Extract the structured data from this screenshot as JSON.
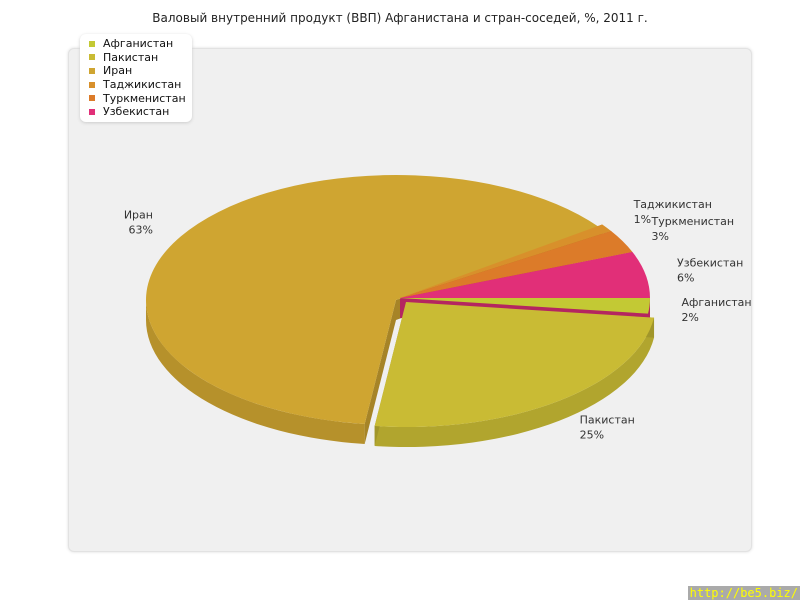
{
  "chart_data": {
    "type": "pie",
    "title": "Валовый внутренний продукт (ВВП) Афганистана и стран-соседей, %, 2011 г.",
    "legend_placement": "top-left",
    "slices": [
      {
        "label": "Афганистан",
        "value": 2,
        "value_label": "2%",
        "color": "#c3c934"
      },
      {
        "label": "Пакистан",
        "value": 25,
        "value_label": "25%",
        "color": "#c9bb34"
      },
      {
        "label": "Иран",
        "value": 63,
        "value_label": "63%",
        "color": "#cfa531"
      },
      {
        "label": "Таджикистан",
        "value": 1,
        "value_label": "1%",
        "color": "#d8902b"
      },
      {
        "label": "Туркменистан",
        "value": 3,
        "value_label": "3%",
        "color": "#dc7b29"
      },
      {
        "label": "Узбекистан",
        "value": 6,
        "value_label": "6%",
        "color": "#e12f78"
      }
    ],
    "exploded": [
      "Пакистан",
      "Иран"
    ]
  },
  "watermark": "http://be5.biz/"
}
